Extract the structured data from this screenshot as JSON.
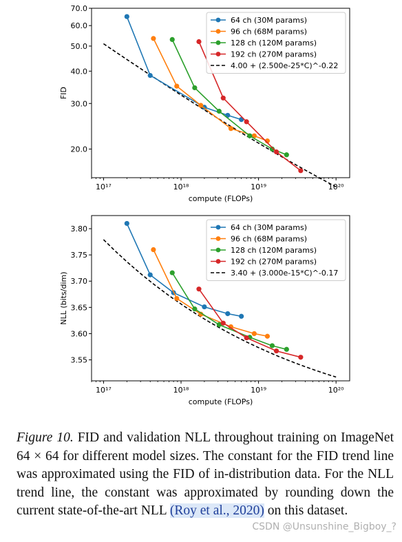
{
  "chart_data": [
    {
      "type": "line",
      "xlabel": "compute (FLOPs)",
      "ylabel": "FID",
      "xscale": "log",
      "yscale": "log",
      "xlim": [
        7e+16,
        1.5e+20
      ],
      "ylim": [
        15.5,
        70
      ],
      "xticks": [
        1e+17,
        1e+18,
        1e+19,
        1e+20
      ],
      "xticklabels": [
        "10¹⁷",
        "10¹⁸",
        "10¹⁹",
        "10²⁰"
      ],
      "yticks": [
        20,
        30,
        40,
        50,
        60,
        70
      ],
      "yticklabels": [
        "20.0",
        "30.0",
        "40.0",
        "50.0",
        "60.0",
        "70.0"
      ],
      "legend_position": "top-right",
      "series": [
        {
          "name": "64 ch (30M params)",
          "color": "#1f77b4",
          "x": [
            2e+17,
            4e+17,
            2e+18,
            4e+18,
            6e+18
          ],
          "y": [
            65,
            38.5,
            29,
            27,
            26
          ]
        },
        {
          "name": "96 ch (68M params)",
          "color": "#ff7f0e",
          "x": [
            4.4e+17,
            8.8e+17,
            1.8e+18,
            4.4e+18,
            8.8e+18,
            1.3e+19
          ],
          "y": [
            53.5,
            35,
            29.5,
            24,
            22.5,
            21.5
          ]
        },
        {
          "name": "128 ch (120M params)",
          "color": "#2ca02c",
          "x": [
            7.7e+17,
            1.5e+18,
            3.1e+18,
            7.7e+18,
            1.5e+19,
            2.3e+19
          ],
          "y": [
            53,
            34.5,
            28,
            22.5,
            20,
            19
          ]
        },
        {
          "name": "192 ch (270M params)",
          "color": "#d62728",
          "x": [
            1.7e+18,
            3.5e+18,
            7e+18,
            1.7e+19,
            3.5e+19
          ],
          "y": [
            52,
            31.5,
            25.5,
            19.5,
            16.5
          ]
        }
      ],
      "trend": {
        "name": "4.00 + (2.500e-25*C)^-0.22",
        "color": "#000000",
        "dashed": true,
        "c": 4.0,
        "k": 2.5e-25,
        "p": -0.22,
        "xrange": [
          1e+17,
          1e+20
        ]
      }
    },
    {
      "type": "line",
      "xlabel": "compute (FLOPs)",
      "ylabel": "NLL (bits/dim)",
      "xscale": "log",
      "yscale": "linear",
      "xlim": [
        7e+16,
        1.5e+20
      ],
      "ylim": [
        3.51,
        3.825
      ],
      "xticks": [
        1e+17,
        1e+18,
        1e+19,
        1e+20
      ],
      "xticklabels": [
        "10¹⁷",
        "10¹⁸",
        "10¹⁹",
        "10²⁰"
      ],
      "yticks": [
        3.55,
        3.6,
        3.65,
        3.7,
        3.75,
        3.8
      ],
      "yticklabels": [
        "3.55",
        "3.60",
        "3.65",
        "3.70",
        "3.75",
        "3.80"
      ],
      "legend_position": "top-right",
      "series": [
        {
          "name": "64 ch (30M params)",
          "color": "#1f77b4",
          "x": [
            2e+17,
            4e+17,
            8e+17,
            2e+18,
            4e+18,
            6e+18
          ],
          "y": [
            3.81,
            3.712,
            3.678,
            3.651,
            3.638,
            3.633
          ]
        },
        {
          "name": "96 ch (68M params)",
          "color": "#ff7f0e",
          "x": [
            4.4e+17,
            8.8e+17,
            1.8e+18,
            4.4e+18,
            8.8e+18,
            1.3e+19
          ],
          "y": [
            3.76,
            3.667,
            3.637,
            3.613,
            3.6,
            3.595
          ]
        },
        {
          "name": "128 ch (120M params)",
          "color": "#2ca02c",
          "x": [
            7.7e+17,
            1.5e+18,
            3.1e+18,
            7.7e+18,
            1.5e+19,
            2.3e+19
          ],
          "y": [
            3.716,
            3.647,
            3.617,
            3.593,
            3.577,
            3.57
          ]
        },
        {
          "name": "192 ch (270M params)",
          "color": "#d62728",
          "x": [
            1.7e+18,
            3.5e+18,
            7e+18,
            1.7e+19,
            3.5e+19
          ],
          "y": [
            3.685,
            3.62,
            3.592,
            3.567,
            3.555
          ]
        }
      ],
      "trend": {
        "name": "3.40 + (3.000e-15*C)^-0.17",
        "color": "#000000",
        "dashed": true,
        "c": 3.4,
        "k": 3e-15,
        "p": -0.17,
        "xrange": [
          1e+17,
          1e+20
        ]
      }
    }
  ],
  "caption": {
    "label": "Figure 10.",
    "text_before_cite": " FID and validation NLL throughout training on ImageNet 64 × 64 for different model sizes. The constant for the FID trend line was approximated using the FID of in-distribution data. For the NLL trend line, the constant was approximated by rounding down the current state-of-the-art NLL ",
    "citation": "(Roy et al., 2020)",
    "text_after_cite": " on this dataset."
  },
  "watermark": "CSDN @Unsunshine_Bigboy_?"
}
